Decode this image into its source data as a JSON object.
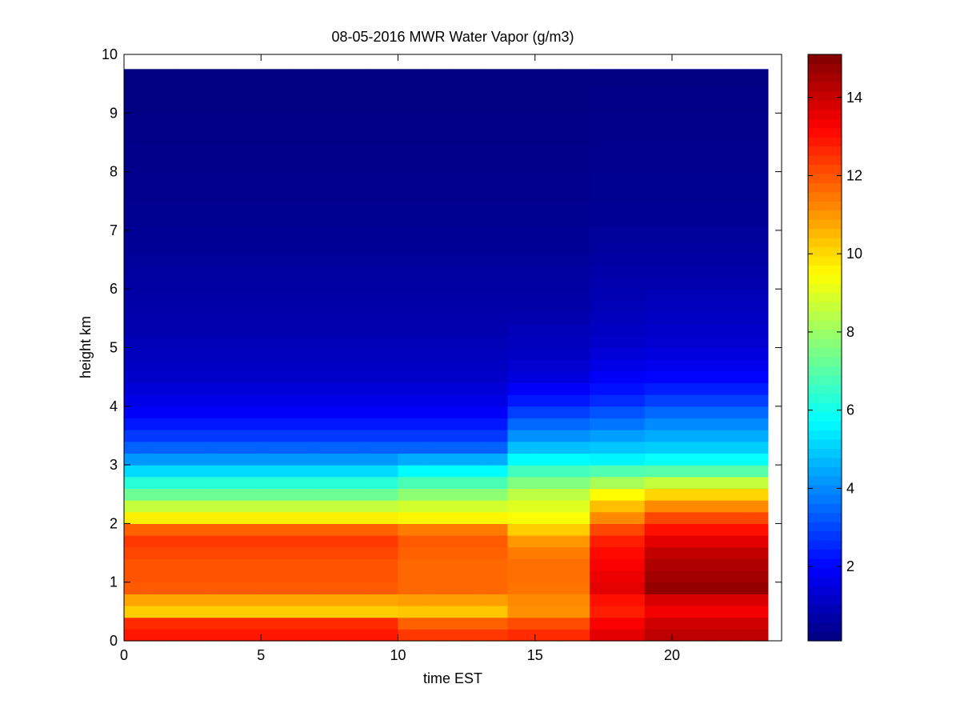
{
  "chart_data": {
    "type": "heatmap",
    "title": "08-05-2016 MWR Water Vapor (g/m3)",
    "xlabel": "time EST",
    "ylabel": "height km",
    "xlim": [
      0,
      24
    ],
    "ylim": [
      0,
      10
    ],
    "x_ticks": [
      0,
      5,
      10,
      15,
      20
    ],
    "y_ticks": [
      0,
      1,
      2,
      3,
      4,
      5,
      6,
      7,
      8,
      9,
      10
    ],
    "colorbar": {
      "colormap": "jet",
      "range": [
        0.1,
        15.1
      ],
      "ticks": [
        2,
        4,
        6,
        8,
        10,
        12,
        14
      ]
    },
    "grid": false,
    "data_extent": {
      "x": [
        0,
        23.5
      ],
      "y": [
        0,
        9.75
      ]
    },
    "time_hours": [
      0.5,
      1.5,
      2.5,
      3.5,
      4.5,
      5.5,
      6.5,
      7.5,
      8.5,
      9.5,
      10.5,
      11.5,
      12.5,
      13.5,
      14.5,
      15.5,
      16.5,
      17.5,
      18.5,
      19.5,
      20.5,
      21.5,
      22.5,
      23.0
    ],
    "height_km": [
      0.1,
      0.3,
      0.5,
      0.7,
      0.9,
      1.1,
      1.3,
      1.5,
      1.7,
      1.9,
      2.1,
      2.3,
      2.5,
      2.7,
      2.9,
      3.1,
      3.3,
      3.5,
      3.7,
      3.9,
      4.1,
      4.3,
      4.5,
      4.7,
      4.9,
      5.1,
      5.3,
      5.5,
      5.7,
      5.9,
      6.1,
      6.3,
      6.5,
      6.7,
      6.9,
      7.25,
      7.75,
      8.25,
      8.75,
      9.25,
      9.65
    ],
    "profiles": {
      "early_morning": [
        12.9,
        12.6,
        10.2,
        10.8,
        11.9,
        12.0,
        12.0,
        12.2,
        12.4,
        11.8,
        9.7,
        8.6,
        7.3,
        6.3,
        5.2,
        4.2,
        3.4,
        2.8,
        2.3,
        1.9,
        1.6,
        1.4,
        1.2,
        1.1,
        1.0,
        0.9,
        0.8,
        0.75,
        0.7,
        0.65,
        0.6,
        0.55,
        0.5,
        0.45,
        0.4,
        0.35,
        0.3,
        0.25,
        0.2,
        0.15,
        0.1
      ],
      "midday": [
        12.4,
        11.8,
        10.3,
        10.9,
        11.7,
        11.7,
        11.7,
        11.8,
        11.9,
        11.4,
        9.6,
        8.8,
        7.8,
        6.8,
        5.7,
        4.5,
        3.4,
        2.8,
        2.3,
        1.9,
        1.6,
        1.4,
        1.2,
        1.1,
        1.0,
        0.9,
        0.8,
        0.75,
        0.7,
        0.65,
        0.6,
        0.55,
        0.5,
        0.45,
        0.4,
        0.35,
        0.3,
        0.25,
        0.2,
        0.15,
        0.1
      ],
      "afternoon": [
        12.6,
        12.1,
        11.1,
        11.2,
        11.5,
        11.6,
        11.6,
        11.4,
        11.0,
        10.2,
        9.4,
        9.0,
        8.5,
        7.6,
        6.7,
        5.7,
        4.8,
        4.1,
        3.5,
        2.9,
        2.3,
        1.9,
        1.5,
        1.3,
        1.1,
        1.0,
        0.9,
        0.8,
        0.7,
        0.65,
        0.6,
        0.55,
        0.5,
        0.45,
        0.4,
        0.35,
        0.3,
        0.25,
        0.2,
        0.15,
        0.1
      ],
      "evening": [
        13.6,
        13.3,
        12.8,
        13.0,
        13.6,
        13.5,
        13.3,
        13.1,
        12.8,
        12.2,
        11.2,
        10.4,
        9.5,
        8.2,
        6.9,
        5.6,
        4.9,
        4.3,
        3.7,
        3.2,
        2.6,
        2.2,
        1.9,
        1.6,
        1.4,
        1.2,
        1.1,
        1.0,
        0.9,
        0.85,
        0.8,
        0.7,
        0.6,
        0.55,
        0.5,
        0.4,
        0.35,
        0.3,
        0.25,
        0.2,
        0.15
      ],
      "late_evening": [
        14.2,
        13.9,
        13.4,
        13.8,
        14.8,
        14.6,
        14.4,
        14.1,
        13.6,
        13.0,
        12.2,
        11.2,
        10.1,
        8.6,
        7.0,
        5.8,
        5.0,
        4.5,
        4.0,
        3.5,
        2.9,
        2.4,
        2.0,
        1.7,
        1.5,
        1.3,
        1.2,
        1.1,
        1.0,
        0.9,
        0.8,
        0.7,
        0.6,
        0.55,
        0.5,
        0.4,
        0.35,
        0.3,
        0.25,
        0.2,
        0.15
      ]
    },
    "profile_assignment": [
      "early_morning",
      "early_morning",
      "early_morning",
      "early_morning",
      "early_morning",
      "early_morning",
      "early_morning",
      "early_morning",
      "early_morning",
      "early_morning",
      "midday",
      "midday",
      "midday",
      "midday",
      "afternoon",
      "afternoon",
      "afternoon",
      "evening",
      "evening",
      "late_evening",
      "late_evening",
      "late_evening",
      "late_evening",
      "late_evening"
    ]
  }
}
